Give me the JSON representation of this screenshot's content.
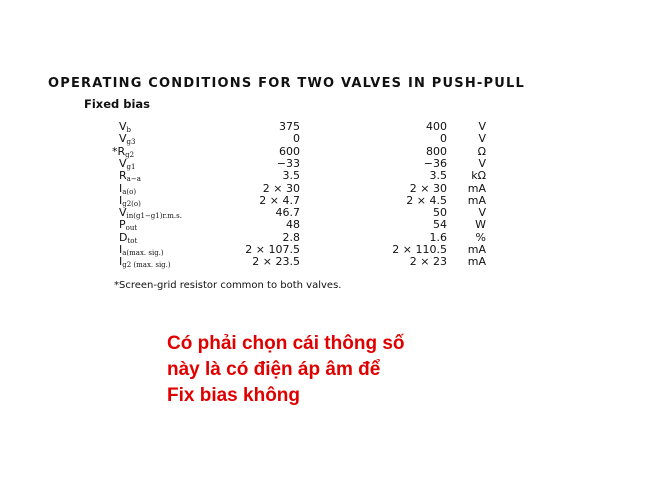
{
  "document": {
    "title": "OPERATING CONDITIONS FOR TWO VALVES IN PUSH-PULL",
    "subtitle": "Fixed bias",
    "rows": [
      {
        "prefix": "",
        "symbol": "V",
        "sub": "b",
        "col1": "375",
        "col2": "400",
        "unit": "V"
      },
      {
        "prefix": "",
        "symbol": "V",
        "sub": "g3",
        "col1": "0",
        "col2": "0",
        "unit": "V"
      },
      {
        "prefix": "*",
        "symbol": "R",
        "sub": "g2",
        "col1": "600",
        "col2": "800",
        "unit": "Ω"
      },
      {
        "prefix": "",
        "symbol": "V",
        "sub": "g1",
        "col1": "−33",
        "col2": "−36",
        "unit": "V"
      },
      {
        "prefix": "",
        "symbol": "R",
        "sub": "a−a",
        "col1": "3.5",
        "col2": "3.5",
        "unit": "kΩ"
      },
      {
        "prefix": "",
        "symbol": "I",
        "sub": "a(o)",
        "col1": "2 × 30",
        "col2": "2 × 30",
        "unit": "mA"
      },
      {
        "prefix": "",
        "symbol": "I",
        "sub": "g2(o)",
        "col1": "2 × 4.7",
        "col2": "2 × 4.5",
        "unit": "mA"
      },
      {
        "prefix": "",
        "symbol": "V",
        "sub": "in(g1−g1)r.m.s.",
        "col1": "46.7",
        "col2": "50",
        "unit": "V"
      },
      {
        "prefix": "",
        "symbol": "P",
        "sub": "out",
        "col1": "48",
        "col2": "54",
        "unit": "W"
      },
      {
        "prefix": "",
        "symbol": "D",
        "sub": "tot",
        "col1": "2.8",
        "col2": "1.6",
        "unit": "%"
      },
      {
        "prefix": "",
        "symbol": "I",
        "sub": "a(max. sig.)",
        "col1": "2 × 107.5",
        "col2": "2 × 110.5",
        "unit": "mA"
      },
      {
        "prefix": "",
        "symbol": "I",
        "sub": "g2 (max. sig.)",
        "col1": "2 × 23.5",
        "col2": "2 × 23",
        "unit": "mA"
      }
    ],
    "footnote": "*Screen-grid resistor common to both valves."
  },
  "question": {
    "lines": [
      "Có phải chọn cái thông số",
      "này là có điện áp âm để",
      "Fix bias không"
    ],
    "color": "#e00000"
  }
}
